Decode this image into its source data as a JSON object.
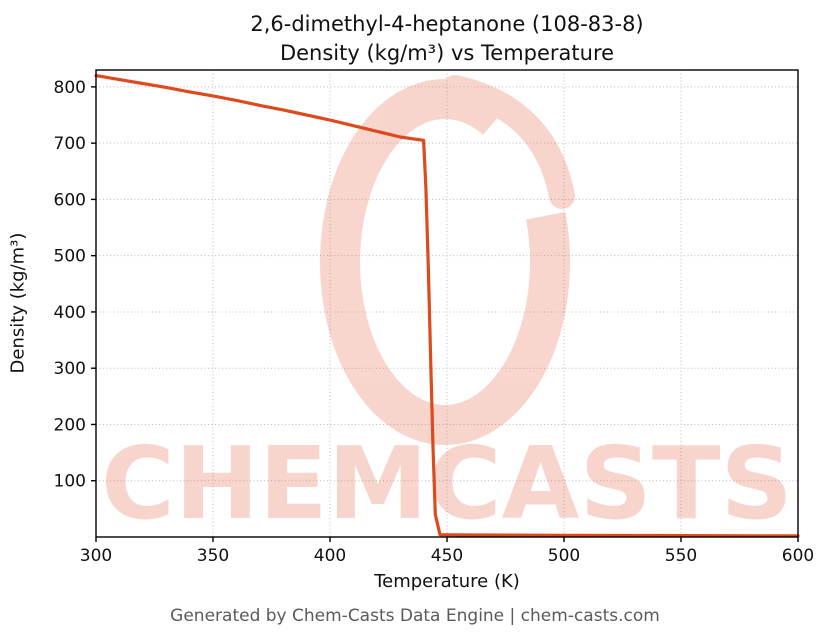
{
  "page": {
    "footer": "Generated by Chem-Casts Data Engine | chem-casts.com"
  },
  "chart_data": {
    "type": "line",
    "title": "2,6-dimethyl-4-heptanone (108-83-8)",
    "subtitle": "Density (kg/m³) vs Temperature",
    "xlabel": "Temperature (K)",
    "ylabel": "Density (kg/m³)",
    "xlim": [
      300,
      600
    ],
    "ylim": [
      0,
      830
    ],
    "x_ticks": [
      300,
      350,
      400,
      450,
      500,
      550,
      600
    ],
    "y_ticks": [
      100,
      200,
      300,
      400,
      500,
      600,
      700,
      800
    ],
    "grid": true,
    "legend": "none",
    "line_color": "#dc4a1e",
    "series": [
      {
        "name": "Density (kg/m³)",
        "points": [
          [
            300,
            820
          ],
          [
            310,
            813
          ],
          [
            320,
            806
          ],
          [
            330,
            799
          ],
          [
            340,
            791
          ],
          [
            350,
            784
          ],
          [
            360,
            776
          ],
          [
            370,
            767
          ],
          [
            380,
            759
          ],
          [
            390,
            750
          ],
          [
            400,
            741
          ],
          [
            410,
            731
          ],
          [
            420,
            721
          ],
          [
            430,
            711
          ],
          [
            440,
            705
          ],
          [
            441,
            620
          ],
          [
            442,
            480
          ],
          [
            443,
            320
          ],
          [
            444,
            160
          ],
          [
            445,
            40
          ],
          [
            447,
            4
          ],
          [
            460,
            3.5
          ],
          [
            500,
            3
          ],
          [
            550,
            2.5
          ],
          [
            600,
            2
          ]
        ]
      }
    ],
    "watermark": {
      "text": "CHEMCASTS",
      "color": "#e2552f",
      "opacity": 0.24
    }
  }
}
